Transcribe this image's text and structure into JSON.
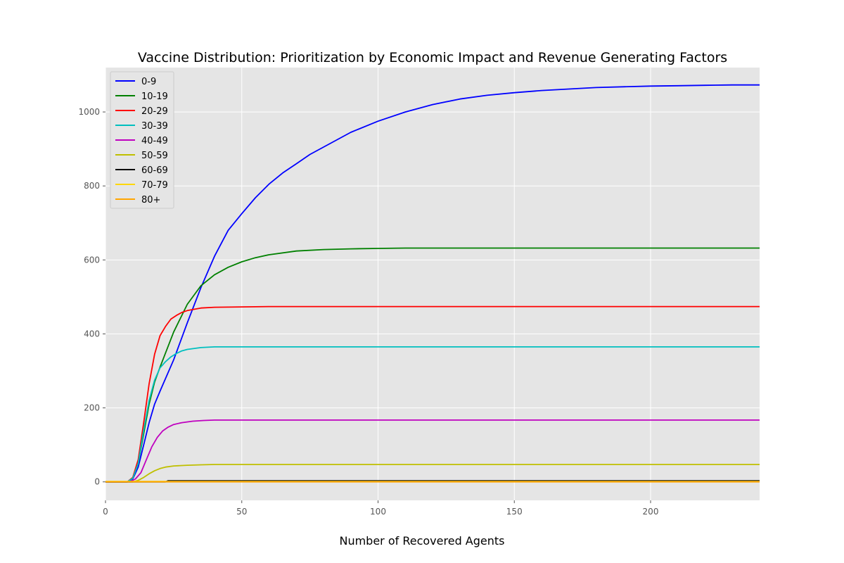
{
  "chart_data": {
    "type": "line",
    "title": "Vaccine Distribution: Prioritization by Economic Impact and Revenue Generating Factors",
    "xlabel": "Number of Recovered Agents",
    "ylabel": "",
    "xlim": [
      0,
      240
    ],
    "ylim": [
      -50,
      1120
    ],
    "xticks": [
      0,
      50,
      100,
      150,
      200
    ],
    "yticks": [
      0,
      200,
      400,
      600,
      800,
      1000
    ],
    "grid": true,
    "legend_position": "top-left",
    "background": "#e5e5e5",
    "series": [
      {
        "name": "0-9",
        "color": "#0000ff",
        "x": [
          0,
          8,
          10,
          12,
          14,
          16,
          18,
          20,
          25,
          30,
          35,
          40,
          45,
          50,
          55,
          60,
          65,
          70,
          75,
          80,
          90,
          100,
          110,
          120,
          130,
          140,
          150,
          160,
          170,
          180,
          190,
          200,
          210,
          220,
          230,
          240
        ],
        "y": [
          0,
          0,
          8,
          40,
          100,
          160,
          210,
          245,
          330,
          430,
          525,
          610,
          680,
          725,
          768,
          805,
          835,
          860,
          885,
          905,
          945,
          975,
          1000,
          1020,
          1035,
          1045,
          1052,
          1058,
          1062,
          1066,
          1068,
          1070,
          1071,
          1072,
          1073,
          1073
        ]
      },
      {
        "name": "10-19",
        "color": "#008000",
        "x": [
          0,
          8,
          10,
          12,
          14,
          16,
          18,
          20,
          25,
          30,
          35,
          40,
          45,
          50,
          55,
          60,
          70,
          80,
          90,
          100,
          110,
          240
        ],
        "y": [
          0,
          0,
          10,
          50,
          130,
          210,
          270,
          310,
          405,
          480,
          530,
          560,
          580,
          595,
          606,
          614,
          624,
          628,
          630,
          631,
          632,
          632
        ]
      },
      {
        "name": "20-29",
        "color": "#ff0000",
        "x": [
          0,
          8,
          10,
          12,
          14,
          16,
          18,
          20,
          22,
          24,
          26,
          28,
          30,
          35,
          40,
          50,
          60,
          240
        ],
        "y": [
          0,
          0,
          12,
          60,
          160,
          265,
          345,
          395,
          420,
          440,
          450,
          458,
          463,
          470,
          472,
          473,
          474,
          474
        ]
      },
      {
        "name": "30-39",
        "color": "#00bfbf",
        "x": [
          0,
          8,
          10,
          12,
          14,
          16,
          18,
          20,
          22,
          24,
          26,
          28,
          30,
          35,
          40,
          240
        ],
        "y": [
          0,
          0,
          10,
          50,
          140,
          220,
          275,
          308,
          325,
          338,
          347,
          354,
          358,
          363,
          365,
          365
        ]
      },
      {
        "name": "40-49",
        "color": "#bf00bf",
        "x": [
          0,
          9,
          11,
          13,
          15,
          17,
          19,
          21,
          23,
          25,
          28,
          32,
          36,
          40,
          240
        ],
        "y": [
          0,
          0,
          8,
          25,
          60,
          95,
          120,
          138,
          148,
          155,
          160,
          164,
          166,
          167,
          167
        ]
      },
      {
        "name": "50-59",
        "color": "#bfbf00",
        "x": [
          0,
          10,
          12,
          14,
          16,
          18,
          20,
          22,
          25,
          30,
          35,
          40,
          240
        ],
        "y": [
          0,
          0,
          4,
          12,
          22,
          30,
          36,
          40,
          43,
          45,
          46,
          47,
          47
        ]
      },
      {
        "name": "60-69",
        "color": "#000000",
        "x": [
          0,
          22,
          23,
          240
        ],
        "y": [
          0,
          0,
          3,
          3
        ]
      },
      {
        "name": "70-79",
        "color": "#ffd700",
        "x": [
          0,
          240
        ],
        "y": [
          1,
          1
        ]
      },
      {
        "name": "80+",
        "color": "#ffa500",
        "x": [
          0,
          240
        ],
        "y": [
          0,
          0
        ]
      }
    ]
  }
}
